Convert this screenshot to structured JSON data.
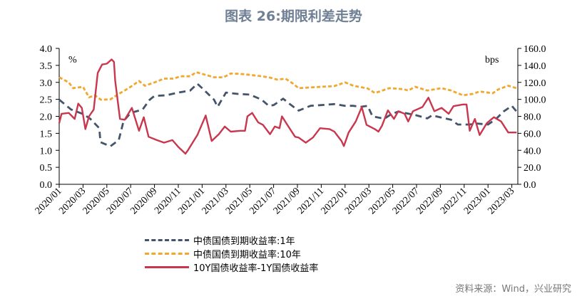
{
  "title": "图表 26:期限利差走势",
  "source": "资料来源：Wind，兴业研究",
  "chart_data": {
    "type": "line",
    "title": "图表 26:期限利差走势",
    "y_left": {
      "label": "%",
      "range": [
        0,
        4.0
      ],
      "ticks": [
        "0.0",
        "0.5",
        "1.0",
        "1.5",
        "2.0",
        "2.5",
        "3.0",
        "3.5",
        "4.0"
      ]
    },
    "y_right": {
      "label": "bps",
      "range": [
        0,
        160
      ],
      "ticks": [
        "0.0",
        "20.0",
        "40.0",
        "60.0",
        "80.0",
        "100.0",
        "120.0",
        "140.0",
        "160.0"
      ]
    },
    "x_ticks": [
      "2020/01",
      "2020/03",
      "2020/05",
      "2020/07",
      "2020/09",
      "2020/11",
      "2021/01",
      "2021/03",
      "2021/05",
      "2021/07",
      "2021/09",
      "2021/11",
      "2022/01",
      "2022/03",
      "2022/05",
      "2022/07",
      "2022/09",
      "2022/11",
      "2023/01",
      "2023/03"
    ],
    "grid": false,
    "legend_position": "bottom",
    "series": [
      {
        "name": "中债国债到期收益率:1年",
        "axis": "left",
        "color": "#44546a",
        "style": "dashed",
        "x": [
          "2020-01-01",
          "2020-02-01",
          "2020-03-01",
          "2020-03-19",
          "2020-04-12",
          "2020-04-15",
          "2020-04-29",
          "2020-05-10",
          "2020-06-01",
          "2020-06-13",
          "2020-07-01",
          "2020-08-01",
          "2020-08-19",
          "2020-09-01",
          "2020-10-01",
          "2020-11-01",
          "2020-12-01",
          "2020-12-19",
          "2021-01-01",
          "2021-02-01",
          "2021-02-10",
          "2021-03-01",
          "2021-04-01",
          "2021-05-01",
          "2021-06-01",
          "2021-06-19",
          "2021-07-01",
          "2021-07-25",
          "2021-08-13",
          "2021-09-04",
          "2021-10-04",
          "2021-11-01",
          "2021-12-04",
          "2022-01-01",
          "2022-01-22",
          "2022-02-10",
          "2022-02-28",
          "2022-03-10",
          "2022-04-10",
          "2022-04-28",
          "2022-05-15",
          "2022-06-15",
          "2022-07-01",
          "2022-07-28",
          "2022-08-10",
          "2022-09-01",
          "2022-09-28",
          "2022-10-15",
          "2022-11-15",
          "2022-12-01",
          "2023-01-01",
          "2023-01-22",
          "2023-02-10",
          "2023-03-01",
          "2023-03-13"
        ],
        "y": [
          2.49,
          2.2,
          2.07,
          1.93,
          1.65,
          1.24,
          1.17,
          1.12,
          1.3,
          1.86,
          2.1,
          2.2,
          2.49,
          2.6,
          2.62,
          2.7,
          2.76,
          2.96,
          2.83,
          2.49,
          2.28,
          2.7,
          2.66,
          2.64,
          2.49,
          2.31,
          2.33,
          2.52,
          2.35,
          2.17,
          2.31,
          2.33,
          2.36,
          2.31,
          2.31,
          2.28,
          2.31,
          2.0,
          1.93,
          2.07,
          2.14,
          2.07,
          2.03,
          1.94,
          2.03,
          1.97,
          1.9,
          1.76,
          1.76,
          1.79,
          1.76,
          1.93,
          2.14,
          2.31,
          2.14
        ]
      },
      {
        "name": "中债国债到期收益率:10年",
        "axis": "left",
        "color": "#f0a830",
        "style": "dotted",
        "x": [
          "2020-01-01",
          "2020-01-25",
          "2020-02-06",
          "2020-03-01",
          "2020-03-16",
          "2020-04-01",
          "2020-04-16",
          "2020-05-10",
          "2020-06-01",
          "2020-06-16",
          "2020-07-01",
          "2020-07-22",
          "2020-08-07",
          "2020-09-01",
          "2020-09-25",
          "2020-10-19",
          "2020-11-07",
          "2020-12-01",
          "2020-12-16",
          "2021-01-01",
          "2021-02-01",
          "2021-02-25",
          "2021-03-13",
          "2021-04-07",
          "2021-05-01",
          "2021-06-01",
          "2021-06-19",
          "2021-07-10",
          "2021-08-01",
          "2021-08-19",
          "2021-09-04",
          "2021-11-01",
          "2021-12-04",
          "2022-01-01",
          "2022-01-22",
          "2022-02-28",
          "2022-03-16",
          "2022-03-28",
          "2022-04-22",
          "2022-05-28",
          "2022-06-10",
          "2022-06-28",
          "2022-07-28",
          "2022-09-04",
          "2022-09-28",
          "2022-10-28",
          "2022-11-22",
          "2022-12-10",
          "2023-01-13",
          "2023-01-28",
          "2023-02-22",
          "2023-03-13"
        ],
        "y": [
          3.15,
          3.0,
          2.83,
          2.87,
          2.56,
          2.62,
          2.49,
          2.5,
          2.66,
          2.76,
          2.87,
          3.04,
          2.9,
          3.0,
          3.11,
          3.11,
          3.18,
          3.18,
          3.3,
          3.25,
          3.15,
          3.15,
          3.26,
          3.25,
          3.22,
          3.18,
          3.15,
          3.08,
          3.11,
          2.97,
          2.83,
          2.87,
          2.89,
          3.0,
          2.9,
          2.82,
          2.69,
          2.73,
          2.83,
          2.8,
          2.76,
          2.87,
          2.76,
          2.83,
          2.76,
          2.62,
          2.66,
          2.73,
          2.68,
          2.8,
          2.9,
          2.83
        ]
      },
      {
        "name": "10Y国债收益率-1Y国债收益率",
        "axis": "right",
        "color": "#c8374d",
        "style": "solid",
        "x": [
          "2020-01-01",
          "2020-01-07",
          "2020-01-25",
          "2020-02-10",
          "2020-02-19",
          "2020-02-28",
          "2020-03-07",
          "2020-03-16",
          "2020-03-28",
          "2020-04-08",
          "2020-04-19",
          "2020-05-01",
          "2020-05-13",
          "2020-05-19",
          "2020-05-22",
          "2020-06-04",
          "2020-06-16",
          "2020-07-04",
          "2020-07-22",
          "2020-08-04",
          "2020-08-16",
          "2020-09-07",
          "2020-09-25",
          "2020-10-16",
          "2020-11-01",
          "2020-11-19",
          "2020-11-25",
          "2020-12-19",
          "2021-01-10",
          "2021-01-25",
          "2021-02-13",
          "2021-02-28",
          "2021-03-13",
          "2021-04-07",
          "2021-04-19",
          "2021-04-25",
          "2021-05-07",
          "2021-05-22",
          "2021-06-04",
          "2021-06-22",
          "2021-07-04",
          "2021-07-16",
          "2021-07-22",
          "2021-08-07",
          "2021-08-25",
          "2021-09-04",
          "2021-09-22",
          "2021-10-10",
          "2021-10-28",
          "2021-11-22",
          "2021-12-04",
          "2021-12-22",
          "2021-12-28",
          "2022-01-10",
          "2022-01-28",
          "2022-02-13",
          "2022-02-25",
          "2022-03-16",
          "2022-03-25",
          "2022-04-04",
          "2022-04-19",
          "2022-05-04",
          "2022-05-15",
          "2022-06-01",
          "2022-06-10",
          "2022-06-22",
          "2022-07-16",
          "2022-08-01",
          "2022-08-16",
          "2022-09-04",
          "2022-09-22",
          "2022-10-04",
          "2022-10-28",
          "2022-11-07",
          "2022-11-15",
          "2022-11-28",
          "2022-12-10",
          "2022-12-28",
          "2023-01-16",
          "2023-02-04",
          "2023-02-22",
          "2023-03-13"
        ],
        "y": [
          72,
          83,
          84,
          77,
          95,
          90,
          65,
          80,
          88,
          131,
          141,
          142,
          147,
          144,
          122,
          77,
          76,
          90,
          63,
          79,
          56,
          52,
          49,
          52,
          44,
          36,
          40,
          58,
          81,
          51,
          59,
          68,
          62,
          63,
          63,
          80,
          84,
          73,
          70,
          59,
          68,
          66,
          80,
          69,
          56,
          55,
          49,
          55,
          66,
          65,
          62,
          51,
          45,
          61,
          74,
          91,
          70,
          65,
          62,
          69,
          87,
          77,
          86,
          83,
          74,
          86,
          91,
          102,
          86,
          90,
          83,
          92,
          94,
          94,
          63,
          77,
          58,
          72,
          79,
          74,
          61,
          61
        ]
      }
    ]
  }
}
